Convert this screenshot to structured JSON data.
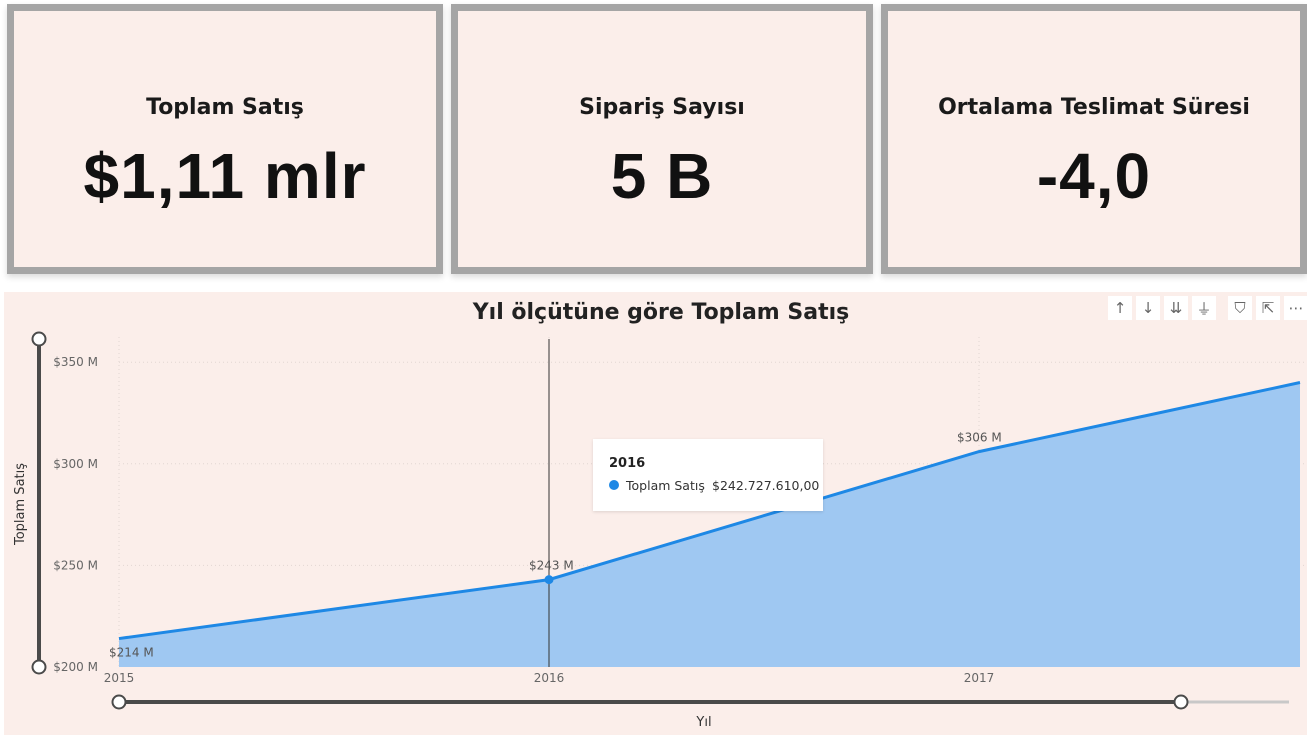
{
  "cards": [
    {
      "title": "Toplam Satış",
      "value": "$1,11 mlr"
    },
    {
      "title": "Sipariş Sayısı",
      "value": "5 B"
    },
    {
      "title": "Ortalama Teslimat Süresi",
      "value": "-4,0"
    }
  ],
  "chart_title": "Yıl ölçütüne göre Toplam Satış",
  "toolbar_icons": [
    "arrow-up-icon",
    "arrow-down-icon",
    "double-arrow-down-icon",
    "expand-hierarchy-icon",
    "filter-icon",
    "focus-mode-icon",
    "more-options-icon"
  ],
  "toolbar_glyphs": [
    "↑",
    "↓",
    "⇊",
    "⏚",
    "⛉",
    "⇱",
    "⋯"
  ],
  "tooltip": {
    "title": "2016",
    "series": "Toplam Satış",
    "value": "$242.727.610,00"
  },
  "colors": {
    "card_bg": "#fbeeea",
    "card_border": "#a5a5a5",
    "line": "#1e88e5",
    "area": "#9fc8f2",
    "slider": "#4a4a4a"
  },
  "chart_data": {
    "type": "area",
    "title": "Yıl ölçütüne göre Toplam Satış",
    "xlabel": "Yıl",
    "ylabel": "Toplam Satış",
    "x": [
      2015,
      2016,
      2017
    ],
    "x_tick_labels": [
      "2015",
      "2016",
      "2017"
    ],
    "series": [
      {
        "name": "Toplam Satış",
        "values": [
          214,
          243,
          306
        ]
      }
    ],
    "data_labels": [
      "$214 M",
      "$243 M",
      "$306 M"
    ],
    "y_tick_values": [
      200,
      250,
      300,
      350
    ],
    "y_tick_labels": [
      "$200 M",
      "$250 M",
      "$300 M",
      "$350 M"
    ],
    "ylim": [
      200,
      360
    ],
    "trailing_value": 340,
    "grid": true,
    "highlighted_x": 2016
  }
}
